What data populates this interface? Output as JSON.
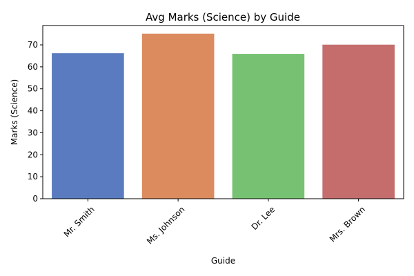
{
  "chart_data": {
    "type": "bar",
    "title": "Avg Marks (Science) by Guide",
    "xlabel": "Guide",
    "ylabel": "Marks (Science)",
    "categories": [
      "Mr. Smith",
      "Ms. Johnson",
      "Dr. Lee",
      "Mrs. Brown"
    ],
    "values": [
      66.2,
      75.1,
      65.9,
      70.1
    ],
    "colors": [
      "#5a7bc0",
      "#db8b5e",
      "#77c172",
      "#c56d6d"
    ],
    "ylim": [
      0,
      78.8
    ],
    "yticks": [
      0,
      10,
      20,
      30,
      40,
      50,
      60,
      70
    ],
    "grid": false,
    "legend": "none"
  }
}
